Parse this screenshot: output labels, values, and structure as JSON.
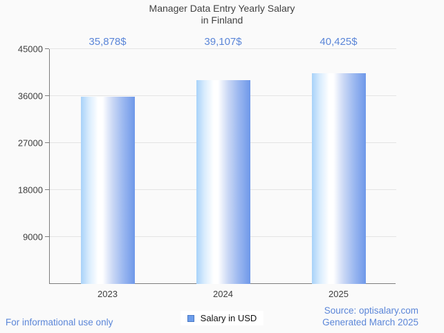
{
  "page": {
    "background": "#fafafa",
    "footer_left": "For informational use only",
    "footer_right_line1": "Source: optisalary.com",
    "footer_right_line2": "Generated March 2025",
    "link_color": "#5b86d8",
    "text_color": "#3e3e3e"
  },
  "chart_data": {
    "type": "bar",
    "title_line1": "Manager Data Entry Yearly Salary",
    "title_line2": "in Finland",
    "categories": [
      "2023",
      "2024",
      "2025"
    ],
    "series": [
      {
        "name": "Salary in USD",
        "values": [
          35878,
          39107,
          40425
        ]
      }
    ],
    "value_labels": [
      "35,878$",
      "39,107$",
      "40,425$"
    ],
    "ylim": [
      0,
      45000
    ],
    "yticks": [
      45000,
      36000,
      27000,
      18000,
      9000
    ],
    "grid": true,
    "legend_position": "bottom",
    "colors": {
      "bar_edge_left": "#a8d2f9",
      "bar_highlight": "#ffffff",
      "bar_edge_right": "#6e98e9",
      "legend_swatch_fill": "#6d9eeb",
      "legend_swatch_border": "#4a79c4",
      "value_label": "#5b86d8",
      "gridline": "#e4e4e4",
      "axis": "#7d7d7d"
    }
  }
}
